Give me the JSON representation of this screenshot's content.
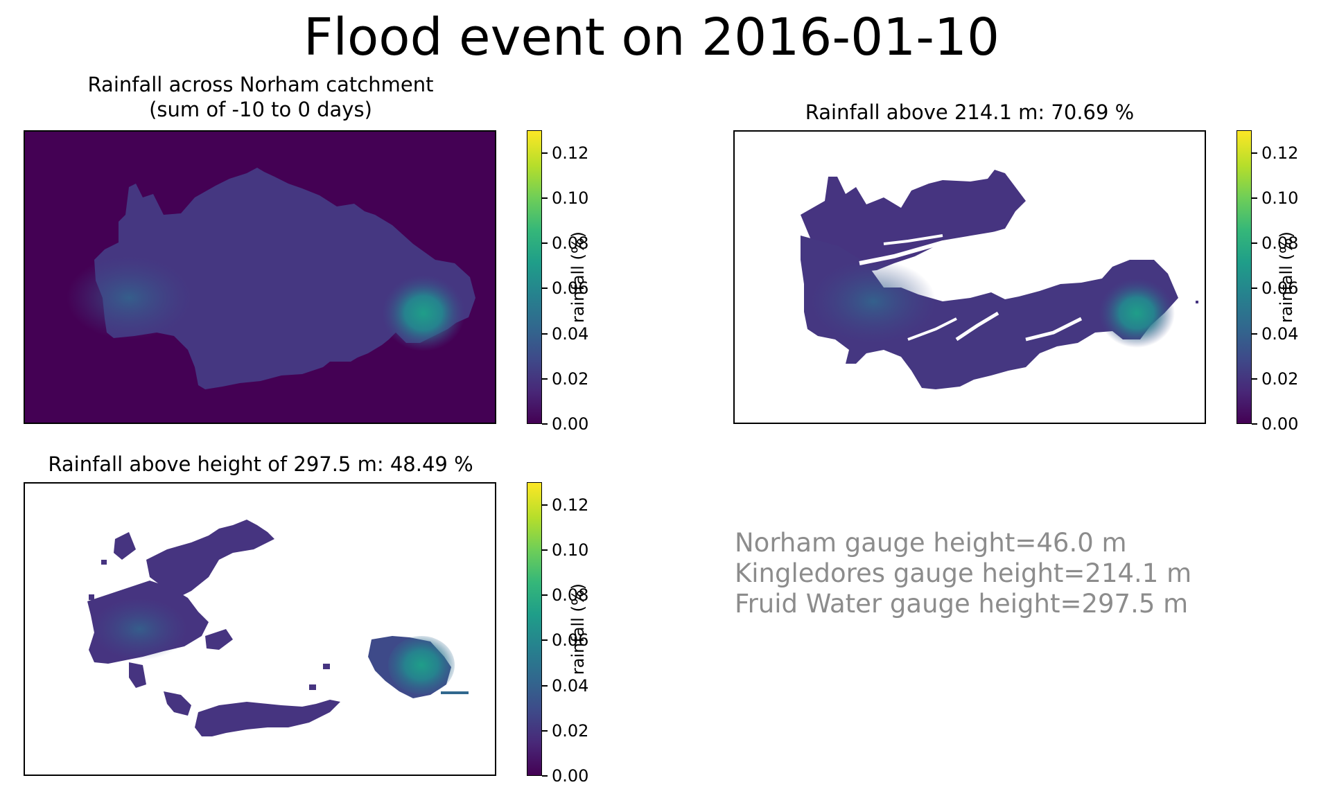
{
  "figure": {
    "title": "Flood event on 2016-01-10",
    "info_lines": [
      "Norham gauge height=46.0 m",
      "Kingledores gauge height=214.1 m",
      "Fruid Water gauge height=297.5 m"
    ]
  },
  "colormap": {
    "name": "viridis",
    "stops": [
      "#440154",
      "#482878",
      "#3e4a89",
      "#31688e",
      "#26828e",
      "#1f9e89",
      "#35b779",
      "#6ece58",
      "#b5de2b",
      "#fde725"
    ]
  },
  "chart_data": [
    {
      "type": "heatmap",
      "title": "Rainfall across Norham catchment\n(sum of -10 to 0 days)",
      "title_lines": [
        "Rainfall across Norham catchment",
        "(sum of -10 to 0 days)"
      ],
      "colorbar": {
        "label": "rainfall (%)",
        "range": [
          0,
          0.13
        ],
        "ticks": [
          "0.00",
          "0.02",
          "0.04",
          "0.06",
          "0.08",
          "0.10",
          "0.12"
        ]
      },
      "typical_value": 0.02,
      "peak_value": 0.06,
      "grid": false
    },
    {
      "type": "heatmap",
      "title": "Rainfall above 214.1 m: 70.69 %",
      "threshold_height_m": 214.1,
      "percent_of_rainfall": 70.69,
      "colorbar": {
        "label": "rainfall (%)",
        "range": [
          0,
          0.13
        ],
        "ticks": [
          "0.00",
          "0.02",
          "0.04",
          "0.06",
          "0.08",
          "0.10",
          "0.12"
        ]
      },
      "typical_value": 0.025,
      "peak_value": 0.06,
      "grid": false
    },
    {
      "type": "heatmap",
      "title": "Rainfall above height of 297.5 m: 48.49 %",
      "threshold_height_m": 297.5,
      "percent_of_rainfall": 48.49,
      "colorbar": {
        "label": "rainfall (%)",
        "range": [
          0,
          0.13
        ],
        "ticks": [
          "0.00",
          "0.02",
          "0.04",
          "0.06",
          "0.08",
          "0.10",
          "0.12"
        ]
      },
      "typical_value": 0.025,
      "peak_value": 0.06,
      "grid": false
    }
  ]
}
